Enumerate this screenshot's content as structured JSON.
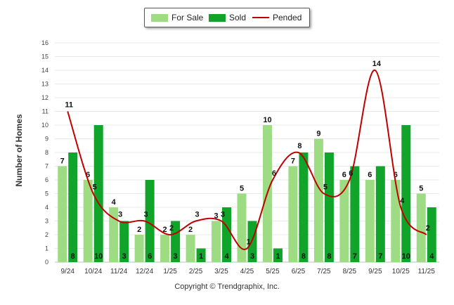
{
  "chart_data": {
    "type": "bar",
    "ylabel": "Number of Homes",
    "xlabel": "",
    "ylim": [
      0,
      16
    ],
    "yticks": [
      0,
      1,
      2,
      3,
      4,
      5,
      6,
      7,
      8,
      9,
      10,
      11,
      12,
      13,
      14,
      15,
      16
    ],
    "grid": true,
    "legend_position": "top-center",
    "categories": [
      "9/24",
      "10/24",
      "11/24",
      "12/24",
      "1/25",
      "2/25",
      "3/25",
      "4/25",
      "5/25",
      "6/25",
      "7/25",
      "8/25",
      "9/25",
      "10/25",
      "11/25"
    ],
    "series": [
      {
        "name": "For Sale",
        "kind": "bar",
        "color": "#9edc84",
        "values": [
          7,
          6,
          4,
          2,
          2,
          2,
          3,
          5,
          10,
          7,
          9,
          6,
          6,
          6,
          5
        ]
      },
      {
        "name": "Sold",
        "kind": "bar",
        "color": "#10a52a",
        "values": [
          8,
          10,
          3,
          6,
          3,
          1,
          4,
          3,
          1,
          8,
          8,
          7,
          7,
          10,
          4
        ]
      },
      {
        "name": "Pended",
        "kind": "line",
        "color": "#c00000",
        "values": [
          11,
          5,
          3,
          3,
          2,
          3,
          3,
          1,
          6,
          8,
          5,
          6,
          14,
          4,
          2
        ]
      }
    ]
  },
  "footer": {
    "copyright": "Copyright © Trendgraphix, Inc."
  }
}
